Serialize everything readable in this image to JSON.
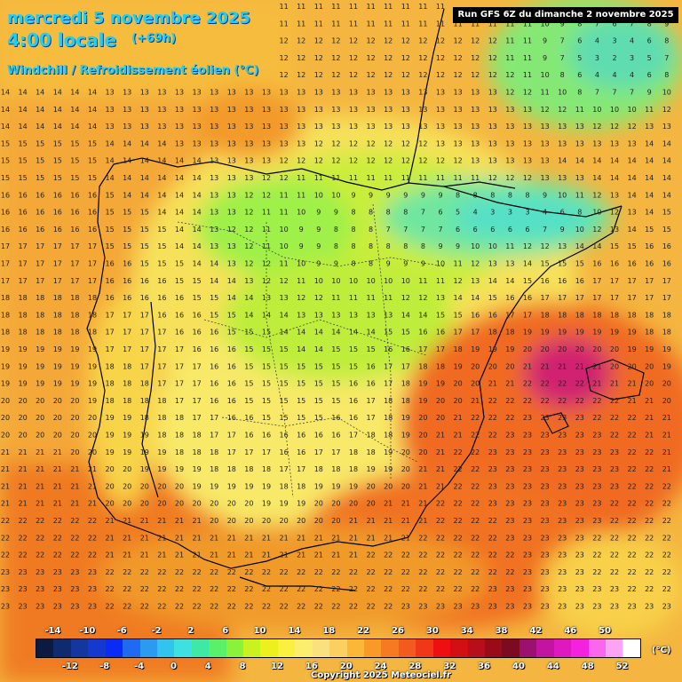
{
  "header": {
    "date_line": "mercredi 5 novembre 2025",
    "time_line": "4:00 locale",
    "offset": "(+69h)",
    "variable": "Windchill / Refroidissement éolien (°C)",
    "run": "Run GFS 6Z du dimanche 2 novembre 2025"
  },
  "legend": {
    "unit": "(°C)",
    "labels_top": [
      "-14",
      "-10",
      "-6",
      "-2",
      "2",
      "6",
      "10",
      "14",
      "18",
      "22",
      "26",
      "30",
      "34",
      "38",
      "42",
      "46",
      "50"
    ],
    "labels_bottom": [
      "-12",
      "-8",
      "-4",
      "0",
      "4",
      "8",
      "12",
      "16",
      "20",
      "24",
      "28",
      "32",
      "36",
      "40",
      "44",
      "48",
      "52"
    ],
    "colors": [
      "#0b1a40",
      "#0f2a6e",
      "#13379e",
      "#1438d0",
      "#0a2af5",
      "#1e6af0",
      "#2b9bf2",
      "#31c4ee",
      "#3fe0e0",
      "#40e8a8",
      "#59f06a",
      "#8af23a",
      "#c8f220",
      "#ecf01e",
      "#faf040",
      "#fbee6e",
      "#fbe080",
      "#fbd060",
      "#fbb838",
      "#f99a28",
      "#f67a22",
      "#f25a20",
      "#f03818",
      "#ee1010",
      "#d40f14",
      "#b80d1a",
      "#9a0b1a",
      "#7c0a20",
      "#9c1070",
      "#c214a0",
      "#e018c0",
      "#f422de",
      "#fa66ee",
      "#fca4f4",
      "#ffffff"
    ]
  },
  "copyright": "Copyright 2025 Meteociel.fr",
  "map_data": {
    "field": "windchill",
    "grid_note": "values printed in grid",
    "sample_values": [
      14,
      15,
      16,
      17,
      18,
      19,
      20,
      21,
      13,
      12,
      11,
      10,
      9,
      8,
      7,
      6,
      5,
      4,
      3,
      2
    ]
  }
}
